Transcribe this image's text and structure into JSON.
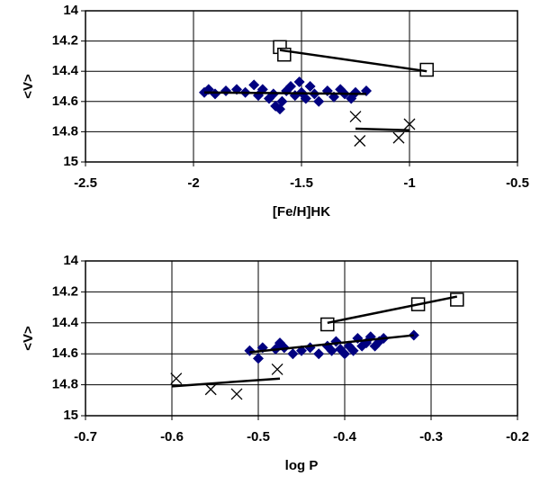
{
  "chart_data": [
    {
      "type": "scatter",
      "x_label": "[Fe/H]HK",
      "y_label": "<V>",
      "xlim": [
        -2.5,
        -0.5
      ],
      "xticks": [
        -2.5,
        -2,
        -1.5,
        -1,
        -0.5
      ],
      "ylim": [
        14,
        15
      ],
      "yticks": [
        14,
        14.2,
        14.4,
        14.6,
        14.8,
        15
      ],
      "y_inverted": true,
      "grid": true,
      "series": [
        {
          "marker": "diamond",
          "color": "#000080",
          "x": [
            -1.95,
            -1.93,
            -1.9,
            -1.85,
            -1.8,
            -1.76,
            -1.72,
            -1.7,
            -1.68,
            -1.65,
            -1.63,
            -1.62,
            -1.6,
            -1.59,
            -1.57,
            -1.55,
            -1.53,
            -1.51,
            -1.5,
            -1.48,
            -1.46,
            -1.44,
            -1.42,
            -1.38,
            -1.35,
            -1.32,
            -1.3,
            -1.27,
            -1.25,
            -1.2
          ],
          "values": [
            14.54,
            14.52,
            14.55,
            14.53,
            14.52,
            14.54,
            14.49,
            14.56,
            14.52,
            14.58,
            14.55,
            14.63,
            14.65,
            14.6,
            14.53,
            14.5,
            14.56,
            14.47,
            14.54,
            14.58,
            14.5,
            14.55,
            14.6,
            14.53,
            14.57,
            14.52,
            14.55,
            14.58,
            14.54,
            14.53
          ]
        },
        {
          "marker": "square",
          "color": "#000000",
          "x": [
            -1.6,
            -1.58,
            -0.92
          ],
          "values": [
            14.24,
            14.29,
            14.39
          ]
        },
        {
          "marker": "cross",
          "color": "#000000",
          "x": [
            -1.25,
            -1.23,
            -1.05,
            -1.0
          ],
          "values": [
            14.7,
            14.86,
            14.84,
            14.75
          ]
        },
        {
          "marker": "line",
          "color": "#000000",
          "x": [
            -1.95,
            -1.2
          ],
          "values": [
            14.54,
            14.55
          ]
        },
        {
          "marker": "line",
          "color": "#000000",
          "x": [
            -1.6,
            -0.92
          ],
          "values": [
            14.26,
            14.4
          ]
        },
        {
          "marker": "line",
          "color": "#000000",
          "x": [
            -1.25,
            -1.0
          ],
          "values": [
            14.78,
            14.79
          ]
        }
      ]
    },
    {
      "type": "scatter",
      "x_label": "log P",
      "y_label": "<V>",
      "xlim": [
        -0.7,
        -0.2
      ],
      "xticks": [
        -0.7,
        -0.6,
        -0.5,
        -0.4,
        -0.3,
        -0.2
      ],
      "ylim": [
        14,
        15
      ],
      "yticks": [
        14,
        14.2,
        14.4,
        14.6,
        14.8,
        15
      ],
      "y_inverted": true,
      "grid": true,
      "series": [
        {
          "marker": "diamond",
          "color": "#000080",
          "x": [
            -0.51,
            -0.5,
            -0.495,
            -0.48,
            -0.475,
            -0.47,
            -0.46,
            -0.45,
            -0.44,
            -0.43,
            -0.42,
            -0.415,
            -0.41,
            -0.405,
            -0.4,
            -0.395,
            -0.39,
            -0.385,
            -0.38,
            -0.375,
            -0.37,
            -0.365,
            -0.36,
            -0.355,
            -0.32
          ],
          "values": [
            14.58,
            14.63,
            14.56,
            14.57,
            14.53,
            14.56,
            14.6,
            14.58,
            14.56,
            14.6,
            14.55,
            14.58,
            14.52,
            14.57,
            14.6,
            14.55,
            14.58,
            14.5,
            14.55,
            14.53,
            14.49,
            14.55,
            14.52,
            14.5,
            14.48
          ]
        },
        {
          "marker": "square",
          "color": "#000000",
          "x": [
            -0.42,
            -0.315,
            -0.27
          ],
          "values": [
            14.41,
            14.28,
            14.25
          ]
        },
        {
          "marker": "cross",
          "color": "#000000",
          "x": [
            -0.595,
            -0.555,
            -0.525,
            -0.478
          ],
          "values": [
            14.76,
            14.83,
            14.86,
            14.7
          ]
        },
        {
          "marker": "line",
          "color": "#000000",
          "x": [
            -0.51,
            -0.32
          ],
          "values": [
            14.59,
            14.48
          ]
        },
        {
          "marker": "line",
          "color": "#000000",
          "x": [
            -0.42,
            -0.27
          ],
          "values": [
            14.4,
            14.23
          ]
        },
        {
          "marker": "line",
          "color": "#000000",
          "x": [
            -0.6,
            -0.475
          ],
          "values": [
            14.81,
            14.76
          ]
        }
      ]
    }
  ]
}
